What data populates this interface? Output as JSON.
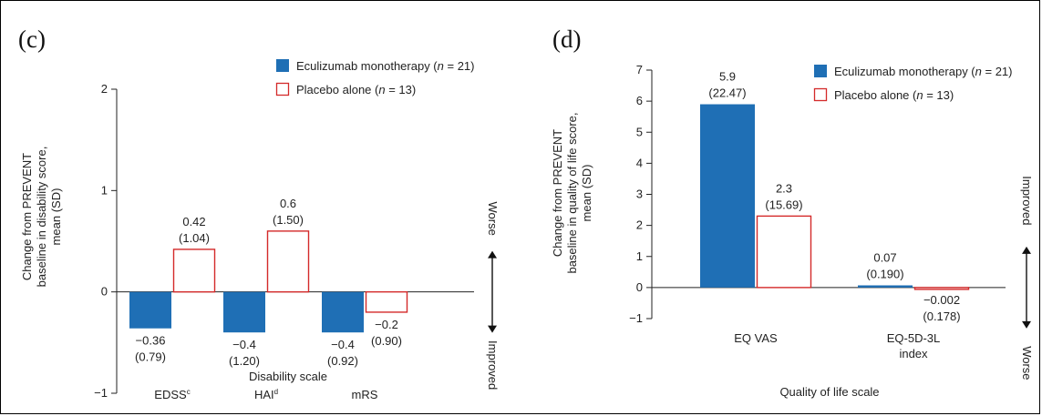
{
  "colors": {
    "eculizumab": "#1f6fb5",
    "placebo": "#d42a2a",
    "axis": "#222222"
  },
  "chart_data": [
    {
      "type": "bar",
      "panel_label": "(c)",
      "categories": [
        "EDSS",
        "HAI",
        "mRS"
      ],
      "category_superscripts": [
        "c",
        "d",
        ""
      ],
      "xlabel": "Disability scale",
      "ylabel_lines": [
        "Change from PREVENT",
        "baseline in disability score,",
        "mean (SD)"
      ],
      "ylim": [
        -1,
        2
      ],
      "yticks": [
        -1,
        0,
        1,
        2
      ],
      "series": [
        {
          "name": "Eculizumab monotherapy (n = 21)",
          "name_parts": [
            "Eculizumab monotherapy (",
            "n",
            " = 21)"
          ],
          "style": "filled",
          "values": [
            -0.36,
            -0.4,
            -0.4
          ],
          "labels": [
            "−0.36",
            "−0.4",
            "−0.4"
          ],
          "sd_labels": [
            "(0.79)",
            "(1.20)",
            "(0.92)"
          ]
        },
        {
          "name": "Placebo alone (n = 13)",
          "name_parts": [
            "Placebo alone (",
            "n",
            " = 13)"
          ],
          "style": "outline",
          "values": [
            0.42,
            0.6,
            -0.2
          ],
          "labels": [
            "0.42",
            "0.6",
            "−0.2"
          ],
          "sd_labels": [
            "(1.04)",
            "(1.50)",
            "(0.90)"
          ]
        }
      ],
      "direction_up": "Worse",
      "direction_down": "Improved",
      "grid": false,
      "legend_position": "top-right"
    },
    {
      "type": "bar",
      "panel_label": "(d)",
      "categories": [
        "EQ VAS",
        "EQ-5D-3L index"
      ],
      "category_lines": [
        [
          "EQ VAS"
        ],
        [
          "EQ-5D-3L",
          "index"
        ]
      ],
      "xlabel": "Quality of life scale",
      "ylabel_lines": [
        "Change from PREVENT",
        "baseline in quality of life score,",
        "mean (SD)"
      ],
      "ylim": [
        -1,
        7
      ],
      "yticks": [
        -1,
        0,
        1,
        2,
        3,
        4,
        5,
        6,
        7
      ],
      "series": [
        {
          "name": "Eculizumab monotherapy (n = 21)",
          "name_parts": [
            "Eculizumab monotherapy (",
            "n",
            " = 21)"
          ],
          "style": "filled",
          "values": [
            5.9,
            0.07
          ],
          "labels": [
            "5.9",
            "0.07"
          ],
          "sd_labels": [
            "(22.47)",
            "(0.190)"
          ]
        },
        {
          "name": "Placebo alone (n = 13)",
          "name_parts": [
            "Placebo alone (",
            "n",
            " = 13)"
          ],
          "style": "outline",
          "values": [
            2.3,
            -0.002
          ],
          "labels": [
            "2.3",
            "−0.002"
          ],
          "sd_labels": [
            "(15.69)",
            "(0.178)"
          ]
        }
      ],
      "direction_up": "Improved",
      "direction_down": "Worse",
      "grid": false,
      "legend_position": "top-right"
    }
  ]
}
